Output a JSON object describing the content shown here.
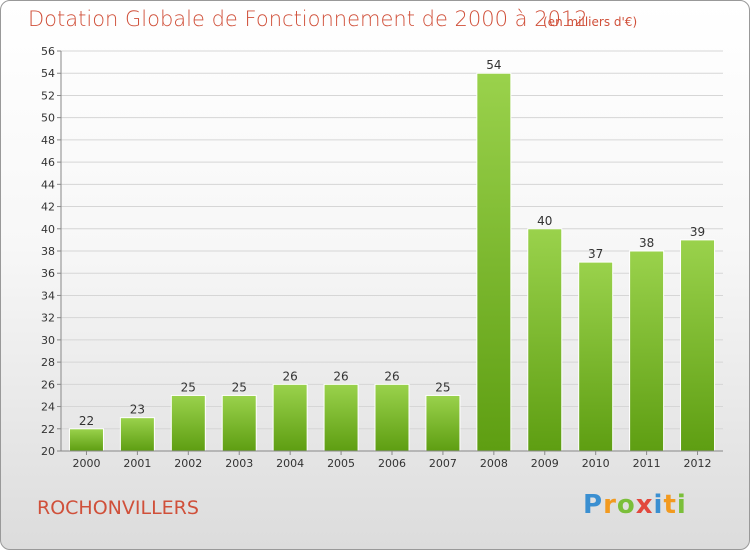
{
  "chart_data": {
    "type": "bar",
    "title": "Dotation Globale de Fonctionnement de 2000 à 2012",
    "subtitle": "(en milliers d'€)",
    "categories": [
      "2000",
      "2001",
      "2002",
      "2003",
      "2004",
      "2005",
      "2006",
      "2007",
      "2008",
      "2009",
      "2010",
      "2011",
      "2012"
    ],
    "values": [
      22,
      23,
      25,
      25,
      26,
      26,
      26,
      25,
      54,
      40,
      37,
      38,
      39
    ],
    "ylim": [
      20,
      56
    ],
    "ytick_step": 2,
    "grid": true,
    "bar_color": "#7fba2e",
    "legend": "none"
  },
  "footer": {
    "commune": "ROCHONVILLERS",
    "logo": {
      "text": "Proxiti",
      "letters": [
        "P",
        "r",
        "o",
        "x",
        "i",
        "t",
        "i"
      ]
    }
  },
  "colors": {
    "title": "#d0503a",
    "bar_top": "#9ad24c",
    "bar_bottom": "#5e9e12"
  }
}
